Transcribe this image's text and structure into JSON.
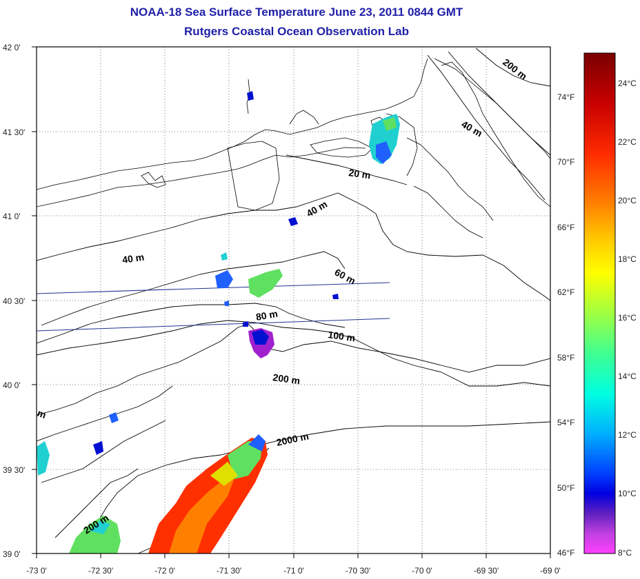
{
  "title": "NOAA-18 Sea Surface Temperature June 23, 2011 0844 GMT",
  "subtitle": "Rutgers Coastal Ocean Observation Lab",
  "x_tick_labels": [
    "-73 0'",
    "-72 30'",
    "-72 0'",
    "-71 30'",
    "-71 0'",
    "-70 30'",
    "-70 0'",
    "-69 30'",
    "-69 0'"
  ],
  "y_tick_labels": [
    "42 0'",
    "41 30'",
    "41 0'",
    "40 30'",
    "40 0'",
    "39 30'",
    "39 0'"
  ],
  "contour_labels": [
    "200 m",
    "40 m",
    "20 m",
    "40 m",
    "40 m",
    "60 m",
    "80 m",
    "100 m",
    "200 m",
    "2000 m",
    "200 m",
    "m"
  ],
  "colorbar": {
    "celsius_labels": [
      "24°C",
      "22°C",
      "20°C",
      "18°C",
      "16°C",
      "14°C",
      "12°C",
      "10°C",
      "8°C"
    ],
    "fahrenheit_labels": [
      "74°F",
      "70°F",
      "66°F",
      "62°F",
      "58°F",
      "54°F",
      "50°F",
      "46°F"
    ],
    "colors": [
      "#7a0000",
      "#c80000",
      "#ff2a00",
      "#ff8000",
      "#ffd000",
      "#ffff00",
      "#a0ff40",
      "#40ff90",
      "#00ffe0",
      "#00b0ff",
      "#0040ff",
      "#0000e0",
      "#6020c0",
      "#c040e0",
      "#ff40ff"
    ]
  },
  "sst_colors": {
    "warm": "#ff3000",
    "orange": "#ff8000",
    "yellow": "#e0e000",
    "green": "#60e060",
    "cyan": "#20d0d0",
    "blue": "#2060ff",
    "navy": "#0010d0",
    "purple": "#a020d0"
  }
}
